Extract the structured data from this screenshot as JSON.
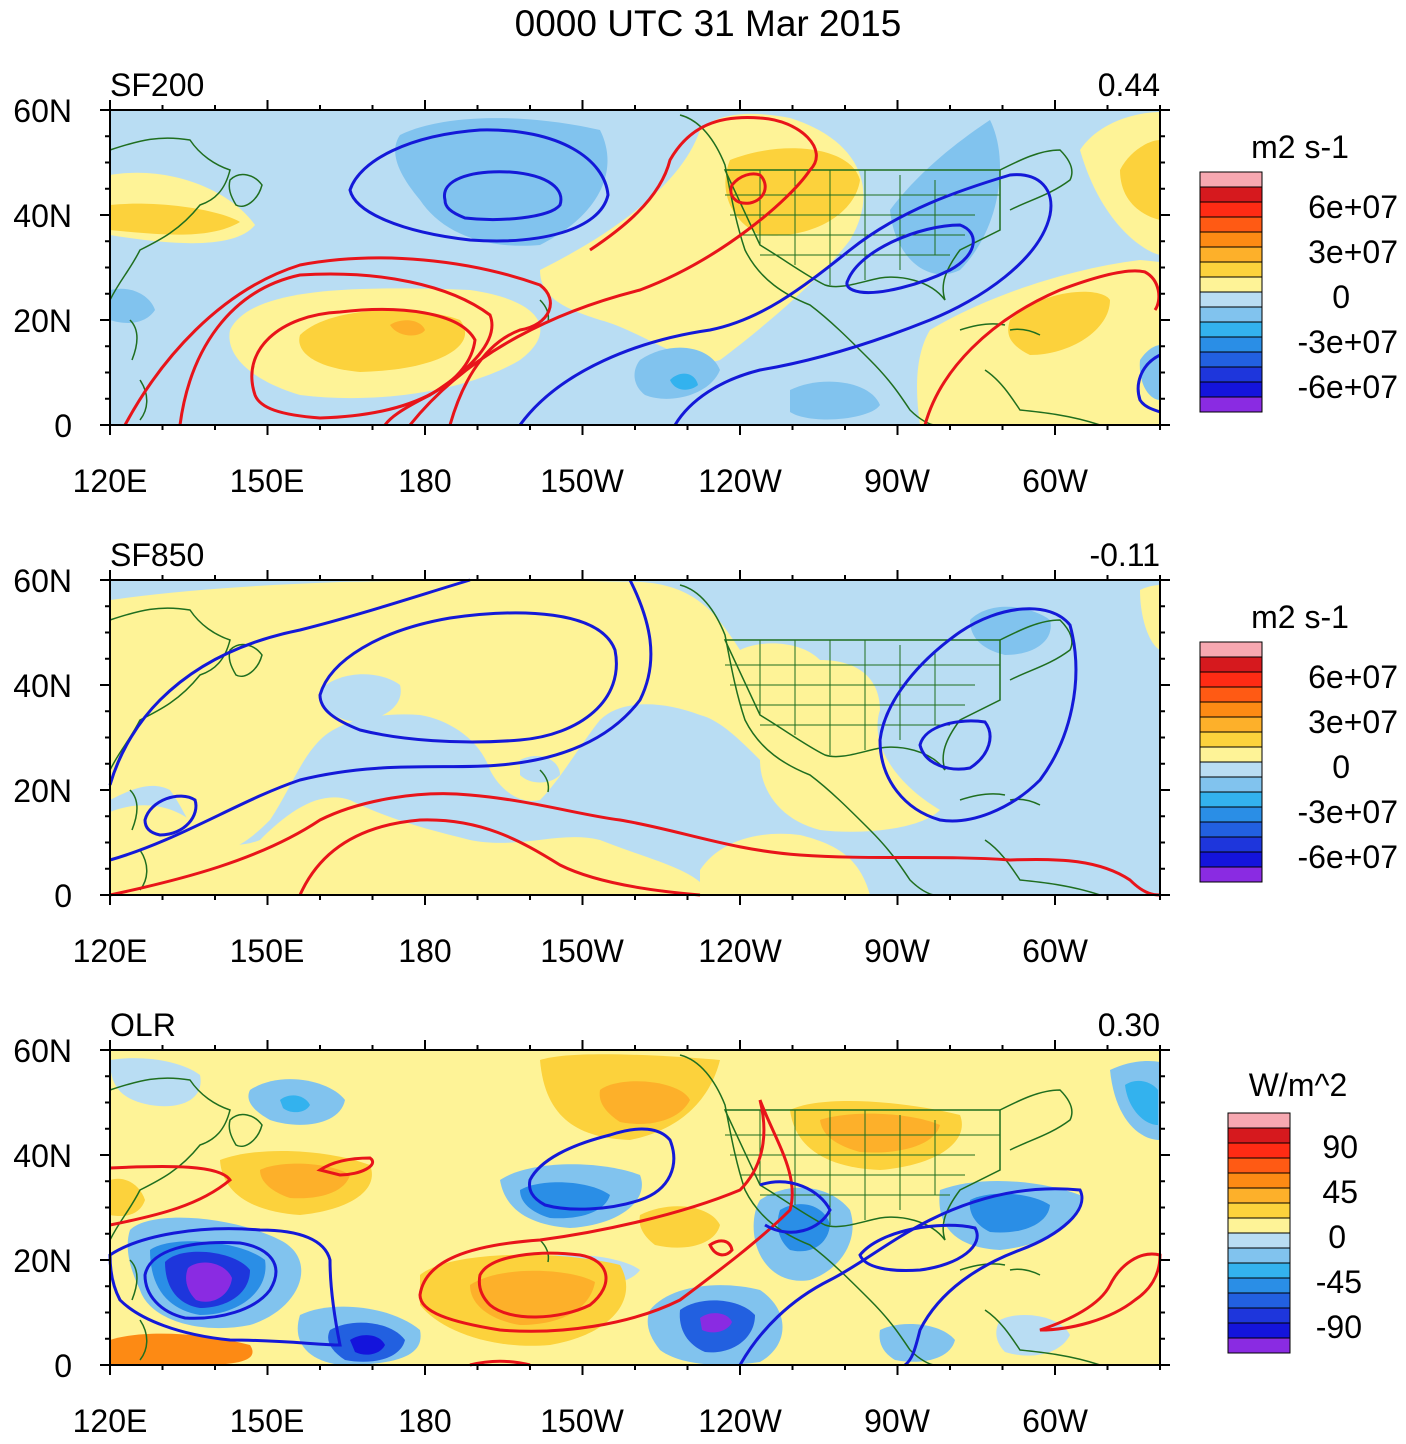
{
  "title": "0000 UTC 31 Mar 2015",
  "x_ticks": [
    "120E",
    "150E",
    "180",
    "150W",
    "120W",
    "90W",
    "60W"
  ],
  "y_ticks": [
    "60N",
    "40N",
    "20N",
    "0"
  ],
  "colors": {
    "positive_contour": "#e8141a",
    "negative_contour": "#1419d8",
    "coastline": "#1f6e1f"
  },
  "panels": [
    {
      "id": "sf200",
      "label": "SF200",
      "value": "0.44",
      "units": "m2 s-1",
      "legend_labels": [
        "6e+07",
        "3e+07",
        "0",
        "-3e+07",
        "-6e+07"
      ]
    },
    {
      "id": "sf850",
      "label": "SF850",
      "value": "-0.11",
      "units": "m2 s-1",
      "legend_labels": [
        "6e+07",
        "3e+07",
        "0",
        "-3e+07",
        "-6e+07"
      ]
    },
    {
      "id": "olr",
      "label": "OLR",
      "value": "0.30",
      "units": "W/m^2",
      "legend_labels": [
        "90",
        "45",
        "0",
        "-45",
        "-90"
      ]
    }
  ],
  "legend_colors": [
    "#f7a8b1",
    "#d6191e",
    "#ff2b14",
    "#ff5a14",
    "#fd8a14",
    "#fdb02a",
    "#fcd23c",
    "#fef397",
    "#b9ddf3",
    "#81c3ee",
    "#33b2ee",
    "#2a8ee6",
    "#2260e0",
    "#1e36dc",
    "#1414dc",
    "#8a2be2"
  ]
}
